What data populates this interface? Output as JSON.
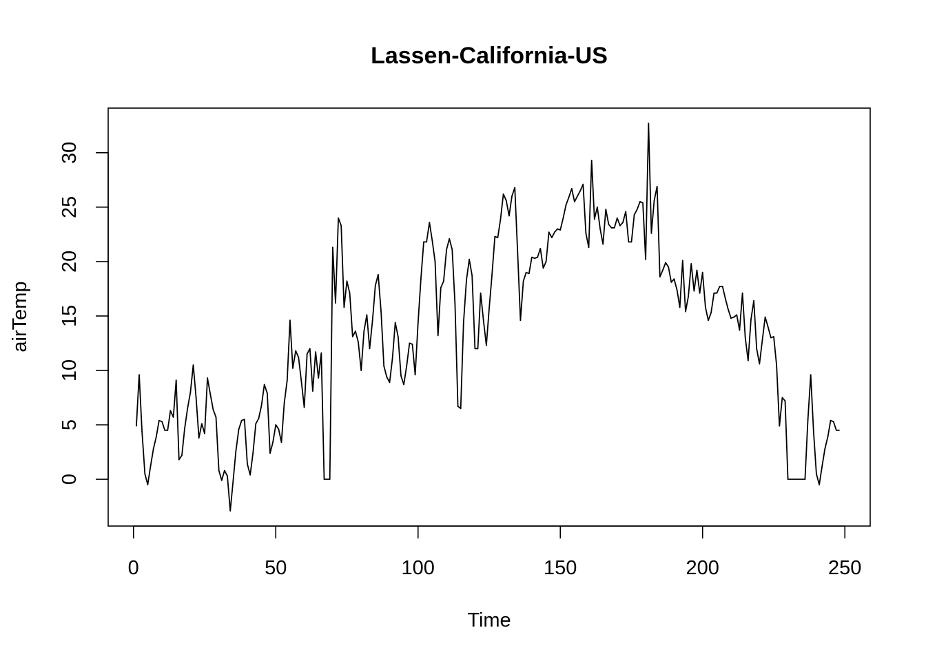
{
  "chart_data": {
    "type": "line",
    "title": "Lassen-California-US",
    "xlabel": "Time",
    "ylabel": "airTemp",
    "xlim": [
      -8.9,
      258.9
    ],
    "ylim": [
      -4.3,
      34.1
    ],
    "xticks": [
      0,
      50,
      100,
      150,
      200,
      250
    ],
    "yticks": [
      0,
      5,
      10,
      15,
      20,
      25,
      30
    ],
    "grid": false,
    "legend": "none",
    "series": [
      {
        "color": "#000000",
        "x": [
          1,
          2,
          3,
          4,
          5,
          6,
          7,
          8,
          9,
          10,
          11,
          12,
          13,
          14,
          15,
          16,
          17,
          18,
          19,
          20,
          21,
          22,
          23,
          24,
          25,
          26,
          27,
          28,
          29,
          30,
          31,
          32,
          33,
          34,
          35,
          36,
          37,
          38,
          39,
          40,
          41,
          42,
          43,
          44,
          45,
          46,
          47,
          48,
          49,
          50,
          51,
          52,
          53,
          54,
          55,
          56,
          57,
          58,
          59,
          60,
          61,
          62,
          63,
          64,
          65,
          66,
          67,
          68,
          69,
          70,
          71,
          72,
          73,
          74,
          75,
          76,
          77,
          78,
          79,
          80,
          81,
          82,
          83,
          84,
          85,
          86,
          87,
          88,
          89,
          90,
          91,
          92,
          93,
          94,
          95,
          96,
          97,
          98,
          99,
          100,
          101,
          102,
          103,
          104,
          105,
          106,
          107,
          108,
          109,
          110,
          111,
          112,
          113,
          114,
          115,
          116,
          117,
          118,
          119,
          120,
          121,
          122,
          123,
          124,
          125,
          126,
          127,
          128,
          129,
          130,
          131,
          132,
          133,
          134,
          135,
          136,
          137,
          138,
          139,
          140,
          141,
          142,
          143,
          144,
          145,
          146,
          147,
          148,
          149,
          150,
          151,
          152,
          153,
          154,
          155,
          156,
          157,
          158,
          159,
          160,
          161,
          162,
          163,
          164,
          165,
          166,
          167,
          168,
          169,
          170,
          171,
          172,
          173,
          174,
          175,
          176,
          177,
          178,
          179,
          180,
          181,
          182,
          183,
          184,
          185,
          186,
          187,
          188,
          189,
          190,
          191,
          192,
          193,
          194,
          195,
          196,
          197,
          198,
          199,
          200,
          201,
          202,
          203,
          204,
          205,
          206,
          207,
          208,
          209,
          210,
          211,
          212,
          213,
          214,
          215,
          216,
          217,
          218,
          219,
          220,
          221,
          222,
          223,
          224,
          225,
          226,
          227,
          228,
          229,
          230,
          231,
          232,
          233,
          234,
          235,
          236,
          237,
          238,
          239,
          240,
          241,
          242,
          243,
          244,
          245,
          246,
          247,
          248
        ],
        "y": [
          4.9,
          9.6,
          4.4,
          0.5,
          -0.5,
          1.2,
          2.8,
          3.9,
          5.4,
          5.3,
          4.5,
          4.5,
          6.3,
          5.7,
          9.1,
          1.8,
          2.2,
          4.7,
          6.5,
          8.0,
          10.5,
          7.5,
          3.8,
          5.1,
          4.2,
          9.3,
          7.8,
          6.4,
          5.7,
          0.8,
          -0.1,
          0.8,
          0.3,
          -2.9,
          -0.2,
          2.6,
          4.6,
          5.4,
          5.5,
          1.4,
          0.4,
          2.4,
          5.1,
          5.6,
          6.8,
          8.7,
          7.9,
          2.4,
          3.4,
          5.0,
          4.6,
          3.4,
          7.0,
          9.1,
          14.6,
          10.2,
          11.8,
          11.2,
          9.0,
          6.6,
          11.5,
          12.0,
          8.1,
          11.7,
          9.3,
          11.6,
          0.0,
          0.0,
          0.0,
          21.3,
          16.2,
          24.0,
          23.3,
          15.8,
          18.2,
          17.1,
          13.1,
          13.6,
          12.6,
          10.0,
          13.6,
          15.1,
          12.0,
          14.6,
          17.8,
          18.8,
          15.4,
          10.4,
          9.4,
          8.9,
          11.1,
          14.4,
          13.1,
          9.5,
          8.7,
          10.4,
          12.5,
          12.4,
          9.6,
          14.4,
          18.4,
          21.8,
          21.8,
          23.6,
          21.9,
          20.0,
          13.2,
          17.6,
          18.2,
          21.1,
          22.1,
          21.1,
          16.1,
          6.7,
          6.5,
          14.4,
          18.3,
          20.2,
          18.7,
          12.0,
          12.0,
          17.1,
          14.6,
          12.3,
          15.7,
          18.8,
          22.3,
          22.2,
          23.9,
          26.2,
          25.6,
          24.2,
          26.0,
          26.8,
          20.8,
          14.6,
          18.2,
          19.0,
          18.9,
          20.4,
          20.3,
          20.4,
          21.2,
          19.4,
          20.0,
          22.7,
          22.2,
          22.7,
          23.0,
          22.9,
          24.0,
          25.2,
          25.9,
          26.7,
          25.5,
          26.0,
          26.5,
          27.1,
          22.6,
          21.3,
          29.3,
          23.9,
          25.0,
          23.0,
          21.6,
          24.8,
          23.4,
          23.1,
          23.1,
          24.0,
          23.3,
          23.6,
          24.6,
          21.8,
          21.8,
          24.3,
          24.8,
          25.5,
          25.4,
          20.2,
          32.7,
          22.6,
          25.6,
          26.9,
          18.6,
          19.2,
          19.9,
          19.5,
          18.1,
          18.4,
          17.4,
          15.8,
          20.1,
          15.4,
          16.8,
          19.8,
          17.3,
          19.2,
          17.1,
          19.0,
          15.8,
          14.6,
          15.3,
          17.1,
          17.1,
          17.7,
          17.7,
          16.6,
          15.6,
          14.8,
          14.9,
          15.1,
          13.7,
          17.1,
          13.0,
          10.9,
          14.7,
          16.4,
          12.0,
          10.6,
          12.8,
          14.9,
          14.0,
          13.0,
          13.1,
          10.5,
          4.9,
          7.5,
          7.2,
          0.0,
          0.0,
          0.0,
          0.0,
          0.0,
          0.0,
          0.0,
          5.5,
          9.6,
          4.4,
          0.5,
          -0.5,
          1.2,
          2.8,
          3.9,
          5.4,
          5.3,
          4.5,
          4.5
        ]
      }
    ]
  }
}
